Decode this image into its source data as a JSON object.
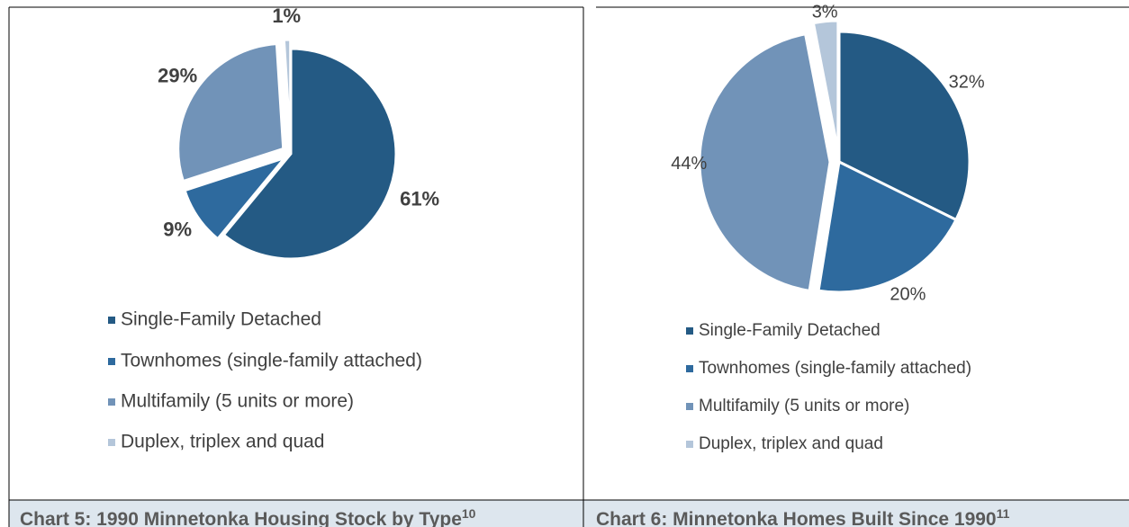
{
  "chart_data": [
    {
      "type": "pie",
      "title": "Chart 5: 1990 Minnetonka Housing Stock by Type",
      "title_footnote": "10",
      "categories": [
        "Single-Family Detached",
        "Townhomes (single-family attached)",
        "Multifamily (5 units or more)",
        "Duplex, triplex and quad"
      ],
      "values": [
        61,
        9,
        29,
        1
      ],
      "value_labels": [
        "61%",
        "9%",
        "29%",
        "1%"
      ],
      "colors": [
        "#245a84",
        "#2e6a9e",
        "#7193b8",
        "#b4c6da"
      ],
      "label_weight": "bold"
    },
    {
      "type": "pie",
      "title": "Chart 6: Minnetonka Homes Built Since 1990",
      "title_footnote": "11",
      "categories": [
        "Single-Family Detached",
        "Townhomes (single-family attached)",
        "Multifamily (5 units or more)",
        "Duplex, triplex and quad"
      ],
      "values": [
        32,
        20,
        44,
        3
      ],
      "value_labels": [
        "32%",
        "20%",
        "44%",
        "3%"
      ],
      "colors": [
        "#245a84",
        "#2e6a9e",
        "#7193b8",
        "#b4c6da"
      ],
      "label_weight": "normal"
    }
  ]
}
